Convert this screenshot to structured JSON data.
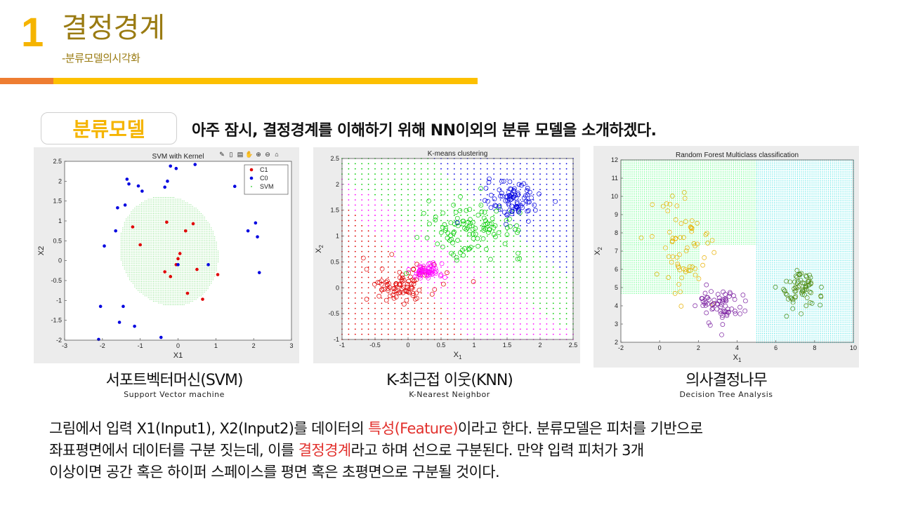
{
  "header": {
    "number": "1",
    "title": "결정경계",
    "subtitle": "-분류모델의시각화"
  },
  "section": {
    "tag": "분류모델",
    "headline": "아주 잠시, 결정경계를 이해하기 위해 NN이외의 분류 모델을 소개하겠다."
  },
  "figures": [
    {
      "title": "SVM with Kernel",
      "caption_ko": "서포트벡터머신(SVM)",
      "caption_en": "Support Vector machine",
      "xlabel": "X1",
      "ylabel": "X2",
      "legend": [
        "C1",
        "C0",
        "SVM"
      ],
      "toolbar_icons": [
        "brush-icon",
        "save-icon",
        "export-icon",
        "pan-icon",
        "zoom-in-icon",
        "zoom-out-icon",
        "home-icon"
      ]
    },
    {
      "title": "K-means clustering",
      "caption_ko": "K-최근접 이웃(KNN)",
      "caption_en": "K-Nearest Neighbor",
      "xlabel": "X1",
      "ylabel": "X2"
    },
    {
      "title": "Random Forest Multiclass classification",
      "caption_ko": "의사결정나무",
      "caption_en": "Decision Tree Analysis",
      "xlabel": "X1",
      "ylabel": "X2"
    }
  ],
  "chart_data": [
    {
      "type": "scatter",
      "title": "SVM with Kernel",
      "xlabel": "X1",
      "ylabel": "X2",
      "xlim": [
        -3,
        3
      ],
      "ylim": [
        -2,
        2.5
      ],
      "xticks": [
        -3,
        -2,
        -1,
        0,
        1,
        2,
        3
      ],
      "yticks": [
        -2,
        -1.5,
        -1,
        -0.5,
        0,
        0.5,
        1,
        1.5,
        2,
        2.5
      ],
      "legend_position": "top-right",
      "region": {
        "name": "SVM",
        "shape": "ellipse",
        "center": [
          -0.25,
          0.25
        ],
        "radii": [
          1.27,
          1.42
        ],
        "rotation_deg": 30,
        "color": "#7ee07e"
      },
      "series": [
        {
          "name": "C1",
          "color": "#e00000",
          "points": [
            [
              -1.2,
              0.85
            ],
            [
              -1.0,
              0.4
            ],
            [
              -0.3,
              0.97
            ],
            [
              0.2,
              0.75
            ],
            [
              0.4,
              0.93
            ],
            [
              0.05,
              0.18
            ],
            [
              0.0,
              0.05
            ],
            [
              -0.05,
              -0.1
            ],
            [
              -0.35,
              -0.28
            ],
            [
              -0.2,
              -0.4
            ],
            [
              0.5,
              -0.22
            ],
            [
              0.25,
              -0.82
            ],
            [
              0.65,
              -0.97
            ],
            [
              1.05,
              -0.35
            ]
          ]
        },
        {
          "name": "C0",
          "color": "#0000e0",
          "points": [
            [
              -0.2,
              2.38
            ],
            [
              -0.05,
              2.32
            ],
            [
              -0.28,
              2.0
            ],
            [
              -0.35,
              1.85
            ],
            [
              -1.05,
              1.88
            ],
            [
              -0.95,
              1.75
            ],
            [
              -1.3,
              1.93
            ],
            [
              -1.35,
              2.05
            ],
            [
              -1.4,
              1.4
            ],
            [
              -1.6,
              1.33
            ],
            [
              -1.65,
              0.75
            ],
            [
              -1.95,
              0.37
            ],
            [
              -2.05,
              -1.15
            ],
            [
              -1.45,
              -1.15
            ],
            [
              -1.55,
              -1.55
            ],
            [
              -1.15,
              -1.65
            ],
            [
              -0.45,
              -1.93
            ],
            [
              -2.1,
              -1.98
            ],
            [
              0.45,
              2.42
            ],
            [
              1.5,
              1.87
            ],
            [
              1.85,
              0.75
            ],
            [
              2.05,
              0.95
            ],
            [
              2.1,
              0.6
            ],
            [
              2.15,
              -0.3
            ],
            [
              0.0,
              -0.1
            ],
            [
              0.8,
              -0.1
            ]
          ]
        }
      ]
    },
    {
      "type": "scatter",
      "title": "K-means clustering",
      "xlabel": "X1",
      "ylabel": "X2",
      "xlim": [
        -1,
        2.5
      ],
      "ylim": [
        -1,
        2.5
      ],
      "xticks": [
        -1,
        -0.5,
        0,
        0.5,
        1,
        1.5,
        2,
        2.5
      ],
      "yticks": [
        -1,
        -0.5,
        0,
        0.5,
        1,
        1.5,
        2,
        2.5
      ],
      "clusters": [
        {
          "color": "#e00000",
          "center": [
            -0.1,
            0.05
          ],
          "spread": [
            0.28,
            0.18
          ]
        },
        {
          "color": "#ff00ff",
          "center": [
            0.28,
            0.32
          ],
          "spread": [
            0.12,
            0.08
          ]
        },
        {
          "color": "#00cc00",
          "center": [
            1.0,
            1.15
          ],
          "spread": [
            0.38,
            0.25
          ]
        },
        {
          "color": "#0000e0",
          "center": [
            1.6,
            1.7
          ],
          "spread": [
            0.2,
            0.18
          ]
        }
      ]
    },
    {
      "type": "scatter",
      "title": "Random Forest Multiclass classification",
      "xlabel": "X1",
      "ylabel": "X2",
      "xlim": [
        -2,
        10
      ],
      "ylim": [
        2,
        12
      ],
      "xticks": [
        -2,
        0,
        2,
        4,
        6,
        8,
        10
      ],
      "yticks": [
        2,
        3,
        4,
        5,
        6,
        7,
        8,
        9,
        10,
        11,
        12
      ],
      "regions": [
        {
          "color": "#33ff66",
          "x": [
            -2,
            5
          ],
          "y": [
            7.4,
            12
          ]
        },
        {
          "color": "#33ff66",
          "x": [
            -2,
            2
          ],
          "y": [
            4.7,
            7.4
          ]
        },
        {
          "color": "#22dddd",
          "x": [
            5,
            10
          ],
          "y": [
            2,
            12
          ]
        }
      ],
      "clusters": [
        {
          "color": "#e8b000",
          "center": [
            1.2,
            7.0
          ],
          "spread": [
            0.9,
            1.6
          ]
        },
        {
          "color": "#7a1fa0",
          "center": [
            3.2,
            4.0
          ],
          "spread": [
            0.6,
            0.5
          ]
        },
        {
          "color": "#4f8a10",
          "center": [
            7.2,
            5.0
          ],
          "spread": [
            0.5,
            0.6
          ]
        }
      ]
    }
  ],
  "body": {
    "line1_a": "그림에서 입력 X1(Input1), X2(Input2)를 데이터의 ",
    "line1_red": "특성(Feature)",
    "line1_b": "이라고 한다. 분류모델은 피처를 기반으로",
    "line2_a": "좌표평면에서 데이터를 구분 짓는데, 이를 ",
    "line2_red": "결정경계",
    "line2_b": "라고 하며 선으로 구분된다. 만약 입력 피처가 3개",
    "line3": "이상이면 공간 혹은 하이퍼 스페이스를 평면 혹은 초평면으로 구분될 것이다."
  }
}
